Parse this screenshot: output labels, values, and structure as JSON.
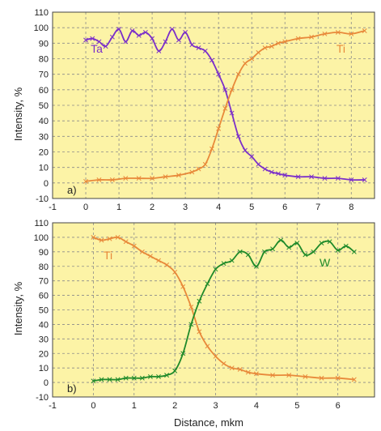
{
  "figure": {
    "ylabel": "Intensity, %",
    "xlabel": "Distance, mkm",
    "plot_background": "#fcf3a6",
    "grid_color": "#8a8a8a"
  },
  "chart_data": [
    {
      "type": "line",
      "panel_label": "a)",
      "xlabel": "",
      "ylabel": "Intensity, %",
      "xlim": [
        -1,
        8.7
      ],
      "ylim": [
        -10,
        110
      ],
      "xticks": [
        "-1",
        "0",
        "1",
        "2",
        "3",
        "4",
        "5",
        "6",
        "7",
        "8"
      ],
      "yticks": [
        "-10",
        "0",
        "10",
        "20",
        "30",
        "40",
        "50",
        "60",
        "70",
        "80",
        "90",
        "100",
        "110"
      ],
      "grid": true,
      "series": [
        {
          "name": "Ta",
          "color": "#7b2fc9",
          "x": [
            0.0,
            0.2,
            0.4,
            0.6,
            0.8,
            1.0,
            1.2,
            1.4,
            1.6,
            1.8,
            2.0,
            2.2,
            2.4,
            2.6,
            2.8,
            3.0,
            3.2,
            3.4,
            3.6,
            3.8,
            4.0,
            4.2,
            4.4,
            4.6,
            4.8,
            5.0,
            5.2,
            5.4,
            5.6,
            5.8,
            6.0,
            6.4,
            6.8,
            7.2,
            7.6,
            8.0,
            8.4
          ],
          "values": [
            92,
            93,
            91,
            88,
            94,
            99,
            91,
            98,
            95,
            97,
            93,
            85,
            91,
            99,
            92,
            97,
            89,
            87,
            85,
            79,
            70,
            60,
            45,
            30,
            21,
            17,
            12,
            9,
            7,
            6,
            5,
            4,
            4,
            3,
            3,
            2,
            2
          ]
        },
        {
          "name": "Ti",
          "color": "#e8893a",
          "x": [
            0.0,
            0.4,
            0.8,
            1.2,
            1.6,
            2.0,
            2.4,
            2.8,
            3.2,
            3.4,
            3.6,
            3.8,
            4.0,
            4.2,
            4.4,
            4.6,
            4.8,
            5.0,
            5.2,
            5.4,
            5.6,
            5.8,
            6.0,
            6.4,
            6.8,
            7.2,
            7.6,
            8.0,
            8.4
          ],
          "values": [
            1,
            2,
            2,
            3,
            3,
            3,
            4,
            5,
            7,
            9,
            12,
            22,
            35,
            48,
            60,
            70,
            77,
            80,
            84,
            87,
            88,
            90,
            91,
            93,
            94,
            96,
            97,
            96,
            98
          ]
        }
      ],
      "labels": [
        {
          "text": "Ta",
          "series": "Ta",
          "x": 0.15,
          "y": 84
        },
        {
          "text": "Ti",
          "series": "Ti",
          "x": 7.55,
          "y": 84
        }
      ]
    },
    {
      "type": "line",
      "panel_label": "b)",
      "xlabel": "Distance, mkm",
      "ylabel": "Intensity, %",
      "xlim": [
        -1,
        6.9
      ],
      "ylim": [
        -10,
        110
      ],
      "xticks": [
        "-1",
        "0",
        "1",
        "2",
        "3",
        "4",
        "5",
        "6"
      ],
      "yticks": [
        "-10",
        "0",
        "10",
        "20",
        "30",
        "40",
        "50",
        "60",
        "70",
        "80",
        "90",
        "100",
        "110"
      ],
      "grid": true,
      "series": [
        {
          "name": "Ti",
          "color": "#e8893a",
          "x": [
            0.0,
            0.2,
            0.4,
            0.6,
            0.8,
            1.0,
            1.2,
            1.4,
            1.6,
            1.8,
            2.0,
            2.2,
            2.4,
            2.6,
            2.8,
            3.0,
            3.2,
            3.4,
            3.6,
            3.8,
            4.0,
            4.4,
            4.8,
            5.2,
            5.6,
            6.0,
            6.4
          ],
          "values": [
            100,
            98,
            99,
            100,
            97,
            94,
            90,
            87,
            84,
            81,
            76,
            66,
            52,
            35,
            25,
            18,
            13,
            10,
            9,
            7,
            6,
            5,
            5,
            4,
            3,
            3,
            2
          ]
        },
        {
          "name": "W",
          "color": "#1f8a2a",
          "x": [
            0.0,
            0.2,
            0.4,
            0.6,
            0.8,
            1.0,
            1.2,
            1.4,
            1.6,
            1.8,
            2.0,
            2.2,
            2.4,
            2.6,
            2.8,
            3.0,
            3.2,
            3.4,
            3.6,
            3.8,
            4.0,
            4.2,
            4.4,
            4.6,
            4.8,
            5.0,
            5.2,
            5.4,
            5.6,
            5.8,
            6.0,
            6.2,
            6.4
          ],
          "values": [
            1,
            2,
            2,
            2,
            3,
            3,
            3,
            4,
            4,
            5,
            8,
            20,
            40,
            56,
            68,
            78,
            82,
            84,
            90,
            88,
            80,
            90,
            92,
            98,
            93,
            96,
            88,
            90,
            96,
            97,
            91,
            94,
            90
          ]
        }
      ],
      "labels": [
        {
          "text": "Ti",
          "series": "Ti",
          "x": 0.25,
          "y": 85
        },
        {
          "text": "W",
          "series": "W",
          "x": 5.55,
          "y": 80
        }
      ]
    }
  ]
}
